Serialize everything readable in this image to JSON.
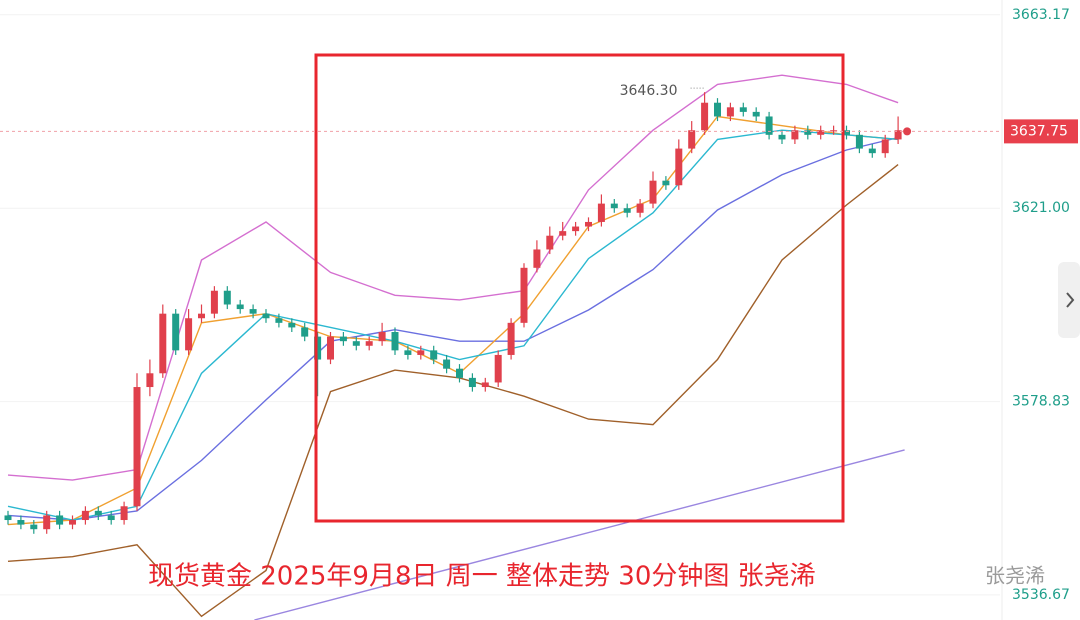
{
  "chart_data": {
    "type": "candlestick",
    "title": "现货黄金  2025年9月8日 周一 整体走势 30分钟图 张尧浠",
    "watermark": "张尧浠",
    "up_color": "#e0404c",
    "down_color": "#1f9e8a",
    "open": [
      3554,
      3553,
      3552,
      3551,
      3554,
      3552,
      3553,
      3555,
      3554,
      3553,
      3556,
      3582,
      3585,
      3598,
      3590,
      3597,
      3598,
      3603,
      3600,
      3599,
      3598,
      3597,
      3596,
      3595,
      3593,
      3588,
      3593,
      3592,
      3591,
      3592,
      3594,
      3590,
      3589,
      3590,
      3588,
      3586,
      3584,
      3582,
      3583,
      3589,
      3596,
      3608,
      3612,
      3615,
      3616,
      3617,
      3618,
      3622,
      3621,
      3620,
      3622,
      3627,
      3626,
      3634,
      3638,
      3644,
      3641,
      3643,
      3642,
      3641,
      3637,
      3636,
      3638,
      3637,
      3638,
      3638,
      3637,
      3634,
      3633,
      3636
    ],
    "high": [
      3555,
      3554,
      3553,
      3555,
      3555,
      3554,
      3556,
      3556,
      3555,
      3557,
      3585,
      3588,
      3600,
      3599,
      3599,
      3600,
      3604,
      3604,
      3601,
      3600,
      3599,
      3598,
      3597,
      3596,
      3594,
      3594,
      3594,
      3593,
      3593,
      3596,
      3595,
      3591,
      3591,
      3591,
      3589,
      3587,
      3585,
      3584,
      3590,
      3597,
      3609,
      3614,
      3617,
      3618,
      3618,
      3619,
      3624,
      3623,
      3622,
      3623,
      3629,
      3628,
      3636,
      3640,
      3646.3,
      3645,
      3644,
      3644,
      3643,
      3642,
      3638,
      3639,
      3639,
      3639,
      3639,
      3639,
      3638,
      3635,
      3637,
      3641
    ],
    "low": [
      3552,
      3551,
      3550,
      3550,
      3551,
      3551,
      3552,
      3553,
      3552,
      3552,
      3555,
      3580,
      3584,
      3589,
      3589,
      3596,
      3597,
      3599,
      3598,
      3597,
      3596,
      3595,
      3594,
      3592,
      3580,
      3587,
      3591,
      3590,
      3590,
      3591,
      3589,
      3588,
      3588,
      3587,
      3585,
      3583,
      3581,
      3581,
      3582,
      3588,
      3595,
      3607,
      3611,
      3614,
      3615,
      3616,
      3617,
      3620,
      3619,
      3619,
      3621,
      3625,
      3625,
      3633,
      3637,
      3640,
      3640,
      3641,
      3640,
      3636,
      3635,
      3635,
      3636,
      3636,
      3637,
      3636,
      3633,
      3632,
      3632,
      3635
    ],
    "close": [
      3553,
      3552,
      3551,
      3554,
      3552,
      3553,
      3555,
      3554,
      3553,
      3556,
      3582,
      3585,
      3598,
      3590,
      3597,
      3598,
      3603,
      3600,
      3599,
      3598,
      3597,
      3596,
      3595,
      3593,
      3588,
      3593,
      3592,
      3591,
      3592,
      3594,
      3590,
      3589,
      3590,
      3588,
      3586,
      3584,
      3582,
      3583,
      3589,
      3596,
      3608,
      3612,
      3615,
      3616,
      3617,
      3618,
      3622,
      3621,
      3620,
      3622,
      3627,
      3626,
      3634,
      3638,
      3644,
      3641,
      3643,
      3642,
      3641,
      3637,
      3636,
      3638,
      3637,
      3638,
      3638,
      3637,
      3634,
      3633,
      3636,
      3638
    ],
    "lines": [
      {
        "color": "#d46fd0",
        "x": [
          0,
          5,
          10,
          15,
          20,
          25,
          30,
          35,
          40,
          45,
          50,
          55,
          60,
          65,
          69
        ],
        "values": [
          3562.8,
          3561.7,
          3564,
          3609.7,
          3618,
          3607,
          3602,
          3601,
          3603,
          3625,
          3638,
          3648,
          3650,
          3648,
          3644
        ]
      },
      {
        "color": "#6a6fe0",
        "x": [
          0,
          5,
          10,
          15,
          20,
          25,
          30,
          35,
          40,
          45,
          50,
          55,
          60,
          65,
          69
        ],
        "values": [
          3554,
          3553,
          3555,
          3566,
          3579.2,
          3592,
          3594.5,
          3592,
          3592,
          3598.8,
          3607.6,
          3620.6,
          3628.3,
          3633.7,
          3636.4
        ]
      },
      {
        "color": "#a0602a",
        "x": [
          0,
          5,
          10,
          15,
          20,
          25,
          30,
          35,
          40,
          45,
          50,
          55,
          60,
          65,
          69
        ],
        "values": [
          3544,
          3545,
          3547.6,
          3532,
          3542,
          3581,
          3585.7,
          3584,
          3580,
          3575,
          3573.8,
          3588,
          3609.7,
          3621.7,
          3630.5
        ]
      },
      {
        "color": "#f0a030",
        "x": [
          0,
          5,
          10,
          15,
          20,
          25,
          30,
          35,
          40,
          45,
          50,
          55,
          60,
          65,
          69
        ],
        "values": [
          3552,
          3553,
          3560,
          3596,
          3598,
          3593,
          3592,
          3585,
          3598,
          3617,
          3623,
          3641,
          3639,
          3637,
          3636
        ]
      },
      {
        "color": "#2bb8d0",
        "x": [
          0,
          5,
          10,
          15,
          20,
          25,
          30,
          35,
          40,
          45,
          50,
          55,
          60,
          65,
          69
        ],
        "values": [
          3556,
          3553,
          3556,
          3585,
          3598,
          3595,
          3592,
          3588,
          3591,
          3610,
          3620,
          3636,
          3638,
          3637,
          3636
        ]
      },
      {
        "color": "#9a86e0",
        "x": [
          19.1,
          69.5
        ],
        "values": [
          3531.2,
          3568.3
        ]
      }
    ],
    "high_label": {
      "value": 3646.3,
      "label": "3646.30"
    },
    "last_price": 3637.75,
    "ylim": [
      3531.2,
      3666.4
    ],
    "yticks": [
      3663.17,
      {
        "value": 3621,
        "label": "3621.00"
      },
      3578.83,
      3536.67
    ],
    "grid": true
  }
}
